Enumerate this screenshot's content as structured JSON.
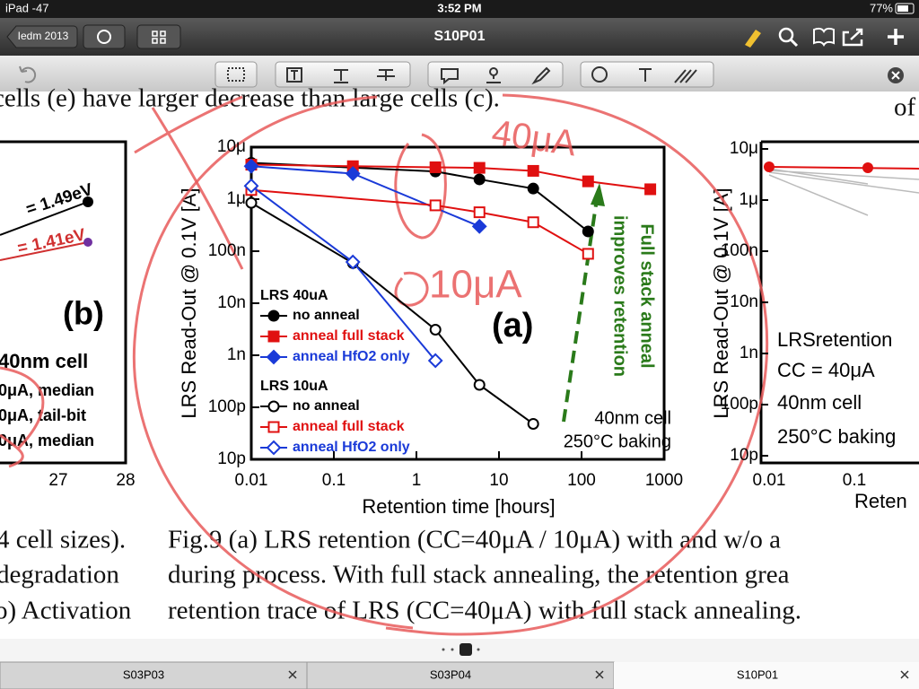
{
  "status_bar": {
    "device": "iPad -47",
    "time": "3:52 PM",
    "battery": "77%"
  },
  "toolbar": {
    "back_button": "Iedm 2013",
    "title": "S10P01"
  },
  "document": {
    "top_line": "cells (e) have larger decrease than large cells (c).",
    "top_line_right": "of",
    "caption_left": [
      "4 cell sizes).",
      "degradation",
      "o) Activation"
    ],
    "caption": [
      "Fig.9 (a) LRS retention (CC=40μA / 10μA) with and w/o a",
      "during process. With full stack annealing, the retention grea",
      "retention trace of LRS (CC=40μA) with full stack annealing."
    ]
  },
  "left_panel": {
    "labels": [
      "= 1.49eV",
      "= 1.41eV",
      "(b)",
      "40nm cell",
      "0μA, median",
      "0μA, tail-bit",
      "0μA, median"
    ],
    "xticks": [
      "27",
      "28"
    ]
  },
  "chart_data": {
    "type": "line",
    "xlabel": "Retention time [hours]",
    "ylabel": "LRS Read-Out @ 0.1V [A]",
    "xscale": "log",
    "yscale": "log",
    "xlim": [
      0.01,
      1000
    ],
    "ylim": [
      1e-11,
      1e-05
    ],
    "xticks": [
      0.01,
      0.1,
      1,
      10,
      100,
      1000
    ],
    "yticks": [
      {
        "value": 1e-05,
        "label": "10μ"
      },
      {
        "value": 1e-06,
        "label": "1μ"
      },
      {
        "value": 1e-07,
        "label": "100n"
      },
      {
        "value": 1e-08,
        "label": "10n"
      },
      {
        "value": 1e-09,
        "label": "1n"
      },
      {
        "value": 1e-10,
        "label": "100p"
      },
      {
        "value": 1e-11,
        "label": "10p"
      }
    ],
    "panel_label": "(a)",
    "annotations": [
      "40nm cell",
      "250°C baking",
      "Full stack anneal",
      "improves retention"
    ],
    "groups": [
      {
        "title": "LRS  40uA",
        "series": [
          {
            "name": "no anneal",
            "color": "#000000",
            "marker": "circle",
            "filled": true,
            "x": [
              0.01,
              1.7,
              5.8,
              26,
              120
            ],
            "values": [
              5e-06,
              3.4e-06,
              2.4e-06,
              1.6e-06,
              2.4e-07
            ]
          },
          {
            "name": "anneal full stack",
            "color": "#e01010",
            "marker": "square",
            "filled": true,
            "x": [
              0.01,
              0.17,
              1.7,
              5.8,
              26,
              120,
              680
            ],
            "values": [
              4.6e-06,
              4.3e-06,
              4.1e-06,
              4e-06,
              3.5e-06,
              2.2e-06,
              1.55e-06
            ]
          },
          {
            "name": "anneal HfO2 only",
            "color": "#1a3ad8",
            "marker": "diamond",
            "filled": true,
            "x": [
              0.01,
              0.17,
              5.8
            ],
            "values": [
              4.3e-06,
              3.1e-06,
              3e-07
            ]
          }
        ]
      },
      {
        "title": "LRS  10uA",
        "series": [
          {
            "name": "no anneal",
            "color": "#000000",
            "marker": "circle",
            "filled": false,
            "x": [
              0.01,
              0.17,
              1.7,
              5.8,
              26
            ],
            "values": [
              8.5e-07,
              5.9e-08,
              3.1e-09,
              2.7e-10,
              4.8e-11
            ]
          },
          {
            "name": "anneal full stack",
            "color": "#e01010",
            "marker": "square",
            "filled": false,
            "x": [
              0.01,
              1.7,
              5.8,
              26,
              120
            ],
            "values": [
              1.5e-06,
              7.6e-07,
              5.6e-07,
              3.6e-07,
              8.9e-08
            ]
          },
          {
            "name": "anneal HfO2 only",
            "color": "#1a3ad8",
            "marker": "diamond",
            "filled": false,
            "x": [
              0.01,
              0.17,
              1.7
            ],
            "values": [
              1.8e-06,
              6.2e-08,
              7.9e-10
            ]
          }
        ]
      }
    ]
  },
  "right_panel": {
    "yticks": [
      "10μ",
      "1μ",
      "100n",
      "10n",
      "1n",
      "100p",
      "10p"
    ],
    "xticks": [
      "0.01",
      "0.1"
    ],
    "ylabel": "LRS Read-Out @ 0.1V [A]",
    "xlabel": "Reten",
    "labels": [
      "LRSretention",
      "CC = 40μA",
      "40nm cell",
      "250°C baking"
    ]
  },
  "ink_notes": [
    "40μA",
    "10μA"
  ],
  "tabs": [
    "S03P03",
    "S03P04",
    "S10P01"
  ]
}
